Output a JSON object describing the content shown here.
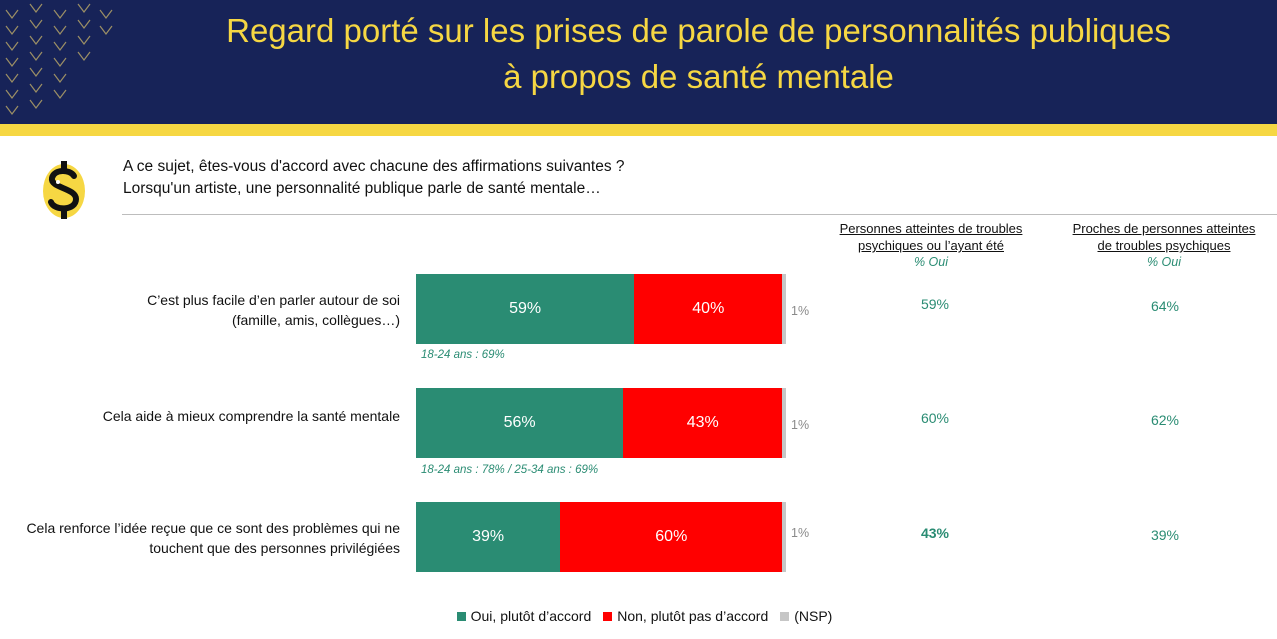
{
  "title": {
    "line1": "Regard porté sur les prises de parole de personnalités publiques",
    "line2": "à propos de santé mentale"
  },
  "question": {
    "line1": "A ce sujet, êtes-vous d'accord avec chacune des affirmations suivantes ?",
    "line2": "Lorsqu'un artiste, une personnalité publique parle de santé mentale…"
  },
  "columns": [
    {
      "title_line1": "Personnes atteintes de troubles",
      "title_line2": "psychiques ou l’ayant été",
      "subtitle": "% Oui"
    },
    {
      "title_line1": "Proches de personnes atteintes",
      "title_line2": "de troubles psychiques",
      "subtitle": "% Oui"
    }
  ],
  "colors": {
    "oui": "#2a8c73",
    "non": "#ff0000",
    "nsp": "#c6c6c6",
    "header_bg": "#172358",
    "header_accent": "#f6d743"
  },
  "chart_data": {
    "type": "bar",
    "orientation": "horizontal",
    "stacked": true,
    "unit": "%",
    "categories": [
      "C’est plus facile d’en parler autour de soi (famille, amis, collègues…)",
      "Cela aide à mieux comprendre la santé mentale",
      "Cela renforce l’idée reçue que ce sont des problèmes qui ne touchent que des personnes privilégiées"
    ],
    "category_lines": [
      [
        "C’est plus facile d’en parler autour de soi",
        "(famille, amis, collègues…)"
      ],
      [
        "Cela aide à mieux comprendre la santé mentale"
      ],
      [
        "Cela renforce l’idée reçue que ce sont des problèmes qui ne",
        "touchent que des personnes privilégiées"
      ]
    ],
    "series": [
      {
        "name": "Oui, plutôt d’accord",
        "values": [
          59,
          56,
          39
        ],
        "labels": [
          "59%",
          "56%",
          "39%"
        ]
      },
      {
        "name": "Non, plutôt pas d’accord",
        "values": [
          40,
          43,
          60
        ],
        "labels": [
          "40%",
          "43%",
          "60%"
        ]
      },
      {
        "name": "(NSP)",
        "values": [
          1,
          1,
          1
        ],
        "labels": [
          "1%",
          "1%",
          "1%"
        ]
      }
    ],
    "notes": [
      "18-24 ans : 69%",
      "18-24 ans : 78% / 25-34 ans : 69%",
      ""
    ],
    "column_values": [
      [
        "59%",
        "64%"
      ],
      [
        "60%",
        "62%"
      ],
      [
        "43%",
        "39%"
      ]
    ],
    "legend_position": "bottom"
  }
}
